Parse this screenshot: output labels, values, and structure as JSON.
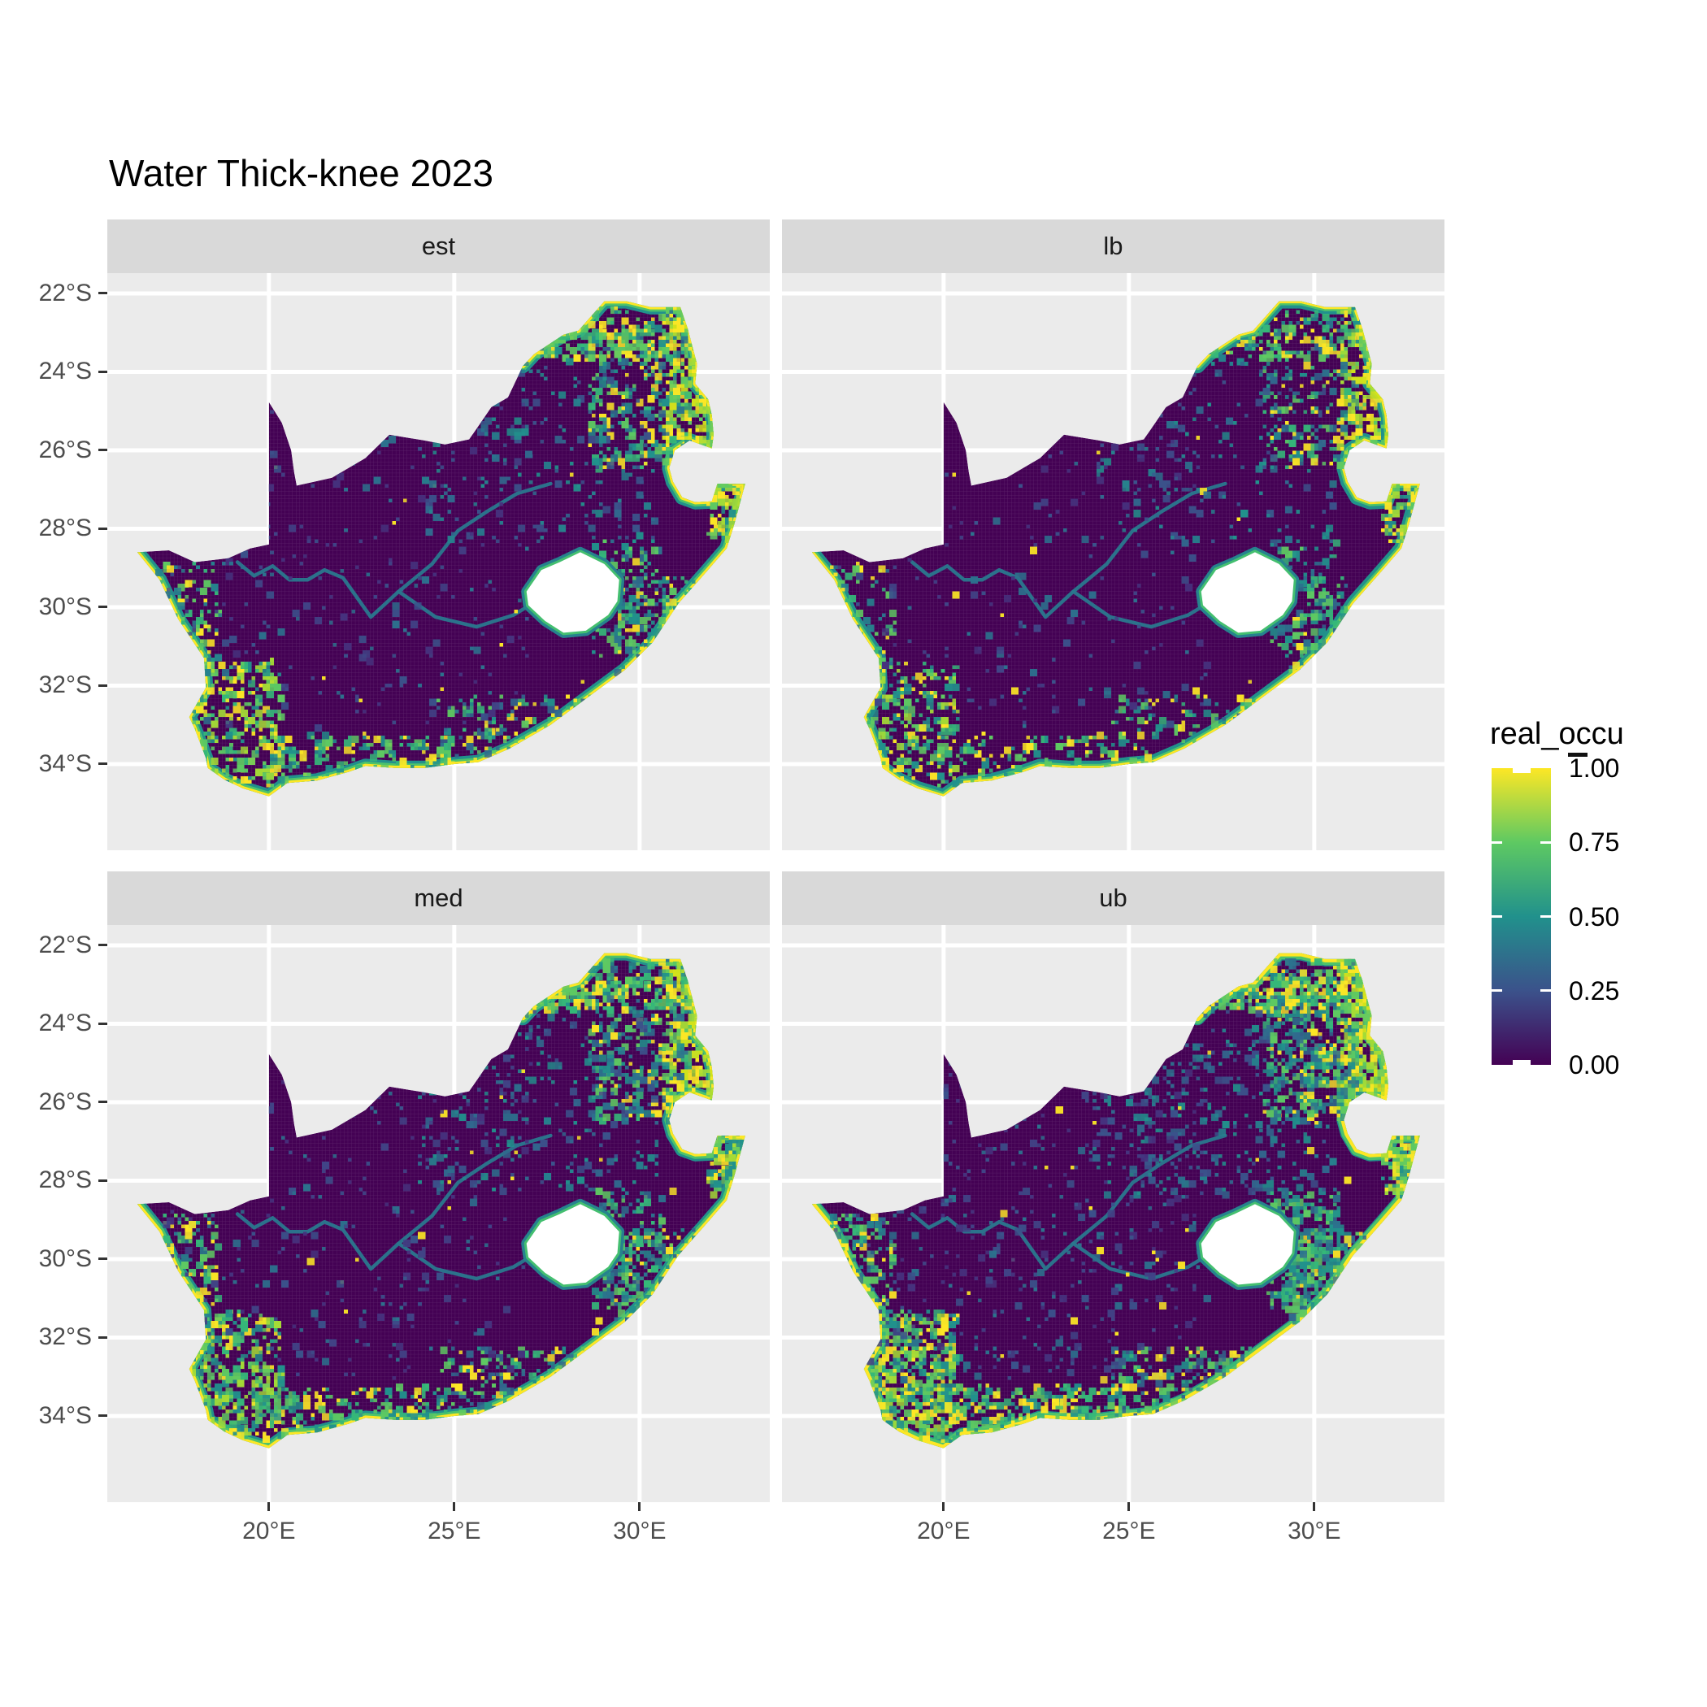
{
  "title": "Water Thick-knee 2023",
  "facets": [
    {
      "id": "est",
      "label": "est",
      "density": 1.0,
      "seed": 11,
      "coast_yellow_w": 5.5,
      "coast_green_w": 11
    },
    {
      "id": "lb",
      "label": "lb",
      "density": 0.78,
      "seed": 22,
      "coast_yellow_w": 5.0,
      "coast_green_w": 10
    },
    {
      "id": "med",
      "label": "med",
      "density": 1.12,
      "seed": 33,
      "coast_yellow_w": 6.0,
      "coast_green_w": 12
    },
    {
      "id": "ub",
      "label": "ub",
      "density": 1.65,
      "seed": 44,
      "coast_yellow_w": 8.0,
      "coast_green_w": 15
    }
  ],
  "axes": {
    "x": {
      "labels": [
        "20°E",
        "25°E",
        "30°E"
      ],
      "lons": [
        20,
        25,
        30
      ]
    },
    "y": {
      "labels": [
        "22°S",
        "24°S",
        "26°S",
        "28°S",
        "30°S",
        "32°S",
        "34°S"
      ],
      "lats": [
        -22,
        -24,
        -26,
        -28,
        -30,
        -32,
        -34
      ]
    }
  },
  "legend": {
    "title": "real_occu",
    "entries": [
      {
        "label": "1.00",
        "value": 1.0
      },
      {
        "label": "0.75",
        "value": 0.75
      },
      {
        "label": "0.50",
        "value": 0.5
      },
      {
        "label": "0.25",
        "value": 0.25
      },
      {
        "label": "0.00",
        "value": 0.0
      }
    ]
  },
  "colors": {
    "page_bg": "#FFFFFF",
    "panel_bg": "#EBEBEB",
    "strip_bg": "#D9D9D9",
    "grid": "#FFFFFF",
    "land": "#440154",
    "hole": "#FFFFFF",
    "axis_text": "#4D4D4D",
    "tick_mark": "#333333",
    "strip_text": "#1A1A1A",
    "title_text": "#000000",
    "river": "#2A788E",
    "lattice": "rgba(255,255,255,0.14)",
    "coast_teal": "#21918C",
    "coast_green": "#4EC36B",
    "coast_yellow": "#FDE725",
    "hole_ring_outer": "#26828E",
    "hole_ring_inner": "#44BF70"
  },
  "chart_data": {
    "type": "heatmap",
    "title": "Water Thick-knee 2023",
    "variable": "real_occu",
    "value_range": [
      0,
      1
    ],
    "facets": [
      "est",
      "lb",
      "med",
      "ub"
    ],
    "region": "South Africa",
    "x_ticks_deg_east": [
      20,
      25,
      30
    ],
    "y_ticks_deg_south": [
      22,
      24,
      26,
      28,
      30,
      32,
      34
    ],
    "extent": {
      "lon": [
        15.64,
        33.51
      ],
      "lat": [
        -36.2,
        -21.48
      ]
    },
    "viridis_stops": {
      "0.00": "#440154",
      "0.25": "#3B528B",
      "0.50": "#21918C",
      "0.75": "#5EC962",
      "1.00": "#FDE725"
    },
    "outline": [
      [
        16.45,
        -28.6
      ],
      [
        17.3,
        -28.55
      ],
      [
        18.0,
        -28.85
      ],
      [
        18.9,
        -28.75
      ],
      [
        19.5,
        -28.5
      ],
      [
        20.0,
        -28.4
      ],
      [
        20.0,
        -24.77
      ],
      [
        20.35,
        -25.3
      ],
      [
        20.6,
        -26.0
      ],
      [
        20.68,
        -26.55
      ],
      [
        20.75,
        -26.9
      ],
      [
        21.7,
        -26.7
      ],
      [
        22.6,
        -26.2
      ],
      [
        23.25,
        -25.6
      ],
      [
        24.2,
        -25.75
      ],
      [
        24.75,
        -25.85
      ],
      [
        25.4,
        -25.72
      ],
      [
        25.6,
        -25.45
      ],
      [
        26.0,
        -24.9
      ],
      [
        26.45,
        -24.65
      ],
      [
        26.85,
        -23.85
      ],
      [
        27.15,
        -23.55
      ],
      [
        27.95,
        -23.05
      ],
      [
        28.35,
        -22.95
      ],
      [
        29.05,
        -22.2
      ],
      [
        29.65,
        -22.2
      ],
      [
        30.3,
        -22.35
      ],
      [
        31.1,
        -22.35
      ],
      [
        31.3,
        -22.9
      ],
      [
        31.55,
        -23.8
      ],
      [
        31.5,
        -24.3
      ],
      [
        31.85,
        -24.7
      ],
      [
        31.95,
        -25.1
      ],
      [
        32.0,
        -25.6
      ],
      [
        31.95,
        -25.95
      ],
      [
        31.35,
        -25.75
      ],
      [
        30.95,
        -26.0
      ],
      [
        30.8,
        -26.45
      ],
      [
        30.9,
        -26.8
      ],
      [
        31.15,
        -27.2
      ],
      [
        31.5,
        -27.32
      ],
      [
        31.95,
        -27.3
      ],
      [
        32.1,
        -26.85
      ],
      [
        32.85,
        -26.85
      ],
      [
        32.55,
        -27.9
      ],
      [
        32.35,
        -28.5
      ],
      [
        31.8,
        -29.1
      ],
      [
        31.05,
        -29.9
      ],
      [
        30.35,
        -30.9
      ],
      [
        29.6,
        -31.6
      ],
      [
        28.6,
        -32.3
      ],
      [
        27.6,
        -33.0
      ],
      [
        26.5,
        -33.6
      ],
      [
        25.65,
        -33.95
      ],
      [
        25.0,
        -34.0
      ],
      [
        24.2,
        -34.1
      ],
      [
        23.4,
        -34.1
      ],
      [
        22.6,
        -34.05
      ],
      [
        22.15,
        -34.2
      ],
      [
        21.3,
        -34.42
      ],
      [
        20.5,
        -34.48
      ],
      [
        20.0,
        -34.82
      ],
      [
        19.3,
        -34.62
      ],
      [
        18.8,
        -34.4
      ],
      [
        18.35,
        -34.1
      ],
      [
        18.3,
        -33.85
      ],
      [
        18.0,
        -33.1
      ],
      [
        17.85,
        -32.8
      ],
      [
        18.3,
        -32.05
      ],
      [
        18.25,
        -31.3
      ],
      [
        17.55,
        -30.3
      ],
      [
        17.05,
        -29.3
      ]
    ],
    "coast_from_index": 20,
    "lesotho_hole": [
      [
        26.95,
        -29.6
      ],
      [
        27.35,
        -29.05
      ],
      [
        27.85,
        -28.85
      ],
      [
        28.4,
        -28.6
      ],
      [
        29.05,
        -28.9
      ],
      [
        29.45,
        -29.3
      ],
      [
        29.4,
        -29.85
      ],
      [
        29.15,
        -30.2
      ],
      [
        28.55,
        -30.6
      ],
      [
        27.95,
        -30.65
      ],
      [
        27.45,
        -30.35
      ],
      [
        27.0,
        -29.95
      ]
    ],
    "rivers": [
      [
        [
          19.15,
          -28.85
        ],
        [
          19.6,
          -29.2
        ],
        [
          20.1,
          -28.95
        ],
        [
          20.55,
          -29.3
        ],
        [
          21.05,
          -29.3
        ],
        [
          21.5,
          -29.05
        ],
        [
          22.0,
          -29.25
        ],
        [
          22.75,
          -30.25
        ],
        [
          23.5,
          -29.6
        ]
      ],
      [
        [
          23.5,
          -29.6
        ],
        [
          24.4,
          -28.9
        ],
        [
          25.1,
          -28.05
        ],
        [
          25.9,
          -27.55
        ],
        [
          26.7,
          -27.1
        ],
        [
          27.6,
          -26.85
        ]
      ],
      [
        [
          23.5,
          -29.6
        ],
        [
          24.5,
          -30.25
        ],
        [
          25.6,
          -30.5
        ],
        [
          26.6,
          -30.2
        ],
        [
          26.95,
          -30.0
        ]
      ]
    ],
    "speckle_regions": [
      {
        "name": "ne_yellow_core",
        "box": [
          30.6,
          -22.3,
          32.4,
          -26.2
        ],
        "count": 420,
        "colors": [
          "#FDE725",
          "#D2E21B",
          "#A5DB36",
          "#5EC962"
        ]
      },
      {
        "name": "ne_green",
        "box": [
          28.6,
          -22.3,
          31.2,
          -26.4
        ],
        "count": 330,
        "colors": [
          "#35B779",
          "#5EC962",
          "#21918C",
          "#2C728E",
          "#FDE725"
        ]
      },
      {
        "name": "ne_border_band",
        "box": [
          26.9,
          -22.8,
          30.8,
          -23.6
        ],
        "count": 140,
        "colors": [
          "#5EC962",
          "#35B779",
          "#FDE725"
        ]
      },
      {
        "name": "interior_ne",
        "box": [
          24.0,
          -23.2,
          30.5,
          -28.3
        ],
        "count": 260,
        "colors": [
          "#31688E",
          "#26828E",
          "#3B528B",
          "#21918C"
        ]
      },
      {
        "name": "interior_yellow_dots",
        "box": [
          20.0,
          -24.0,
          31.0,
          -34.0
        ],
        "count": 26,
        "colors": [
          "#FDE725"
        ]
      },
      {
        "name": "maputaland",
        "box": [
          31.8,
          -26.5,
          32.9,
          -28.3
        ],
        "count": 150,
        "colors": [
          "#FDE725",
          "#A5DB36",
          "#5EC962",
          "#21918C"
        ]
      },
      {
        "name": "kzn_coast",
        "box": [
          29.3,
          -29.2,
          32.3,
          -31.6
        ],
        "count": 190,
        "colors": [
          "#21918C",
          "#35B779",
          "#5EC962",
          "#FDE725",
          "#31688E"
        ]
      },
      {
        "name": "drakensberg",
        "box": [
          28.7,
          -28.2,
          30.6,
          -31.2
        ],
        "count": 170,
        "colors": [
          "#21918C",
          "#2C728E",
          "#35B779",
          "#5EC962"
        ]
      },
      {
        "name": "east_cape_coast",
        "box": [
          24.5,
          -32.2,
          28.6,
          -34.3
        ],
        "count": 200,
        "colors": [
          "#21918C",
          "#35B779",
          "#5EC962",
          "#FDE725",
          "#31688E"
        ]
      },
      {
        "name": "south_coast",
        "box": [
          19.8,
          -33.2,
          24.8,
          -34.6
        ],
        "count": 210,
        "colors": [
          "#35B779",
          "#5EC962",
          "#FDE725",
          "#21918C"
        ]
      },
      {
        "name": "sw_cape",
        "box": [
          17.9,
          -31.3,
          20.3,
          -34.5
        ],
        "count": 330,
        "colors": [
          "#5EC962",
          "#35B779",
          "#FDE725",
          "#21918C",
          "#A5DB36"
        ]
      },
      {
        "name": "west_coast_band",
        "box": [
          16.9,
          -28.8,
          18.6,
          -31.6
        ],
        "count": 110,
        "colors": [
          "#35B779",
          "#5EC962",
          "#FDE725",
          "#26828E"
        ]
      },
      {
        "name": "interior_sparse",
        "box": [
          17.0,
          -24.5,
          27.0,
          -33.0
        ],
        "count": 320,
        "colors": [
          "#46327E",
          "#414487",
          "#3B528B",
          "#2C728E"
        ]
      }
    ]
  }
}
